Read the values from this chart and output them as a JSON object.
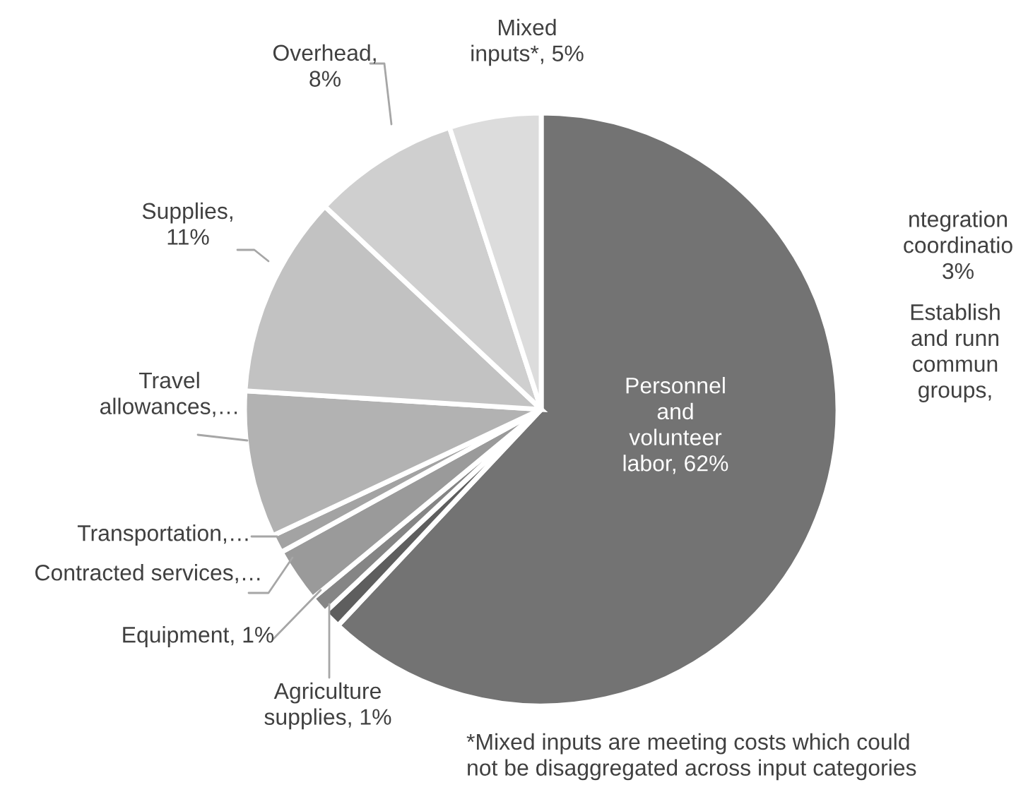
{
  "chart_data": {
    "type": "pie",
    "categories": [
      "Personnel\nand\nvolunteer\nlabor, 62%",
      "Agriculture\nsupplies, 1%",
      "Equipment, 1%",
      "Contracted services,…",
      "Transportation,…",
      "Travel\nallowances,…",
      "Supplies,\n11%",
      "Overhead,\n8%",
      "Mixed\ninputs*, 5%"
    ],
    "values": [
      62,
      1,
      1,
      3,
      1,
      8,
      11,
      8,
      5
    ],
    "colors": [
      "#737373",
      "#5e5e5e",
      "#858585",
      "#9a9a9a",
      "#a3a3a3",
      "#b2b2b2",
      "#c2c2c2",
      "#cfcfcf",
      "#dcdcdc"
    ],
    "annotations": [
      "*Mixed inputs are meeting costs which could\nnot be disaggregated across input categories",
      "ntegration\ncoordinatio\n3%",
      "Establish\nand runn\ncommun\ngroups,"
    ]
  }
}
